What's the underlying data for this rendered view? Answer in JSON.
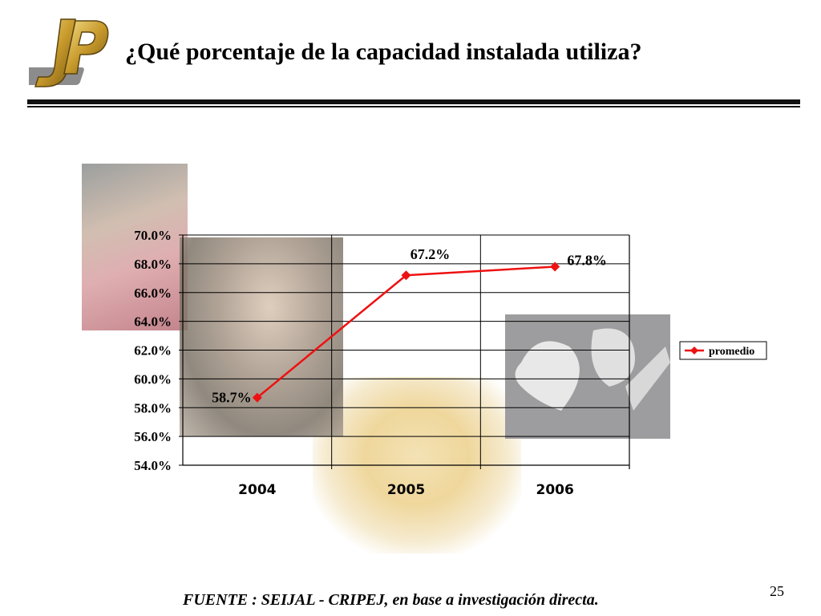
{
  "slide": {
    "title": "¿Qué porcentaje de la capacidad instalada utiliza?",
    "source": "FUENTE : SEIJAL - CRIPEJ, en base a investigación directa.",
    "page_number": "25",
    "logo_text": "JP"
  },
  "chart_data": {
    "type": "line",
    "title": "",
    "xlabel": "",
    "ylabel": "",
    "categories": [
      "2004",
      "2005",
      "2006"
    ],
    "series": [
      {
        "name": "promedio",
        "values": [
          58.7,
          67.2,
          67.8
        ],
        "labels": [
          "58.7%",
          "67.2%",
          "67.8%"
        ],
        "color": "#ee1111",
        "marker": "diamond"
      }
    ],
    "ylim": [
      54.0,
      70.0
    ],
    "yticks": [
      54,
      56,
      58,
      60,
      62,
      64,
      66,
      68,
      70
    ],
    "ytick_labels": [
      "54.0%",
      "56.0%",
      "58.0%",
      "60.0%",
      "62.0%",
      "64.0%",
      "66.0%",
      "68.0%",
      "70.0%"
    ],
    "grid": true,
    "legend_position": "right"
  }
}
